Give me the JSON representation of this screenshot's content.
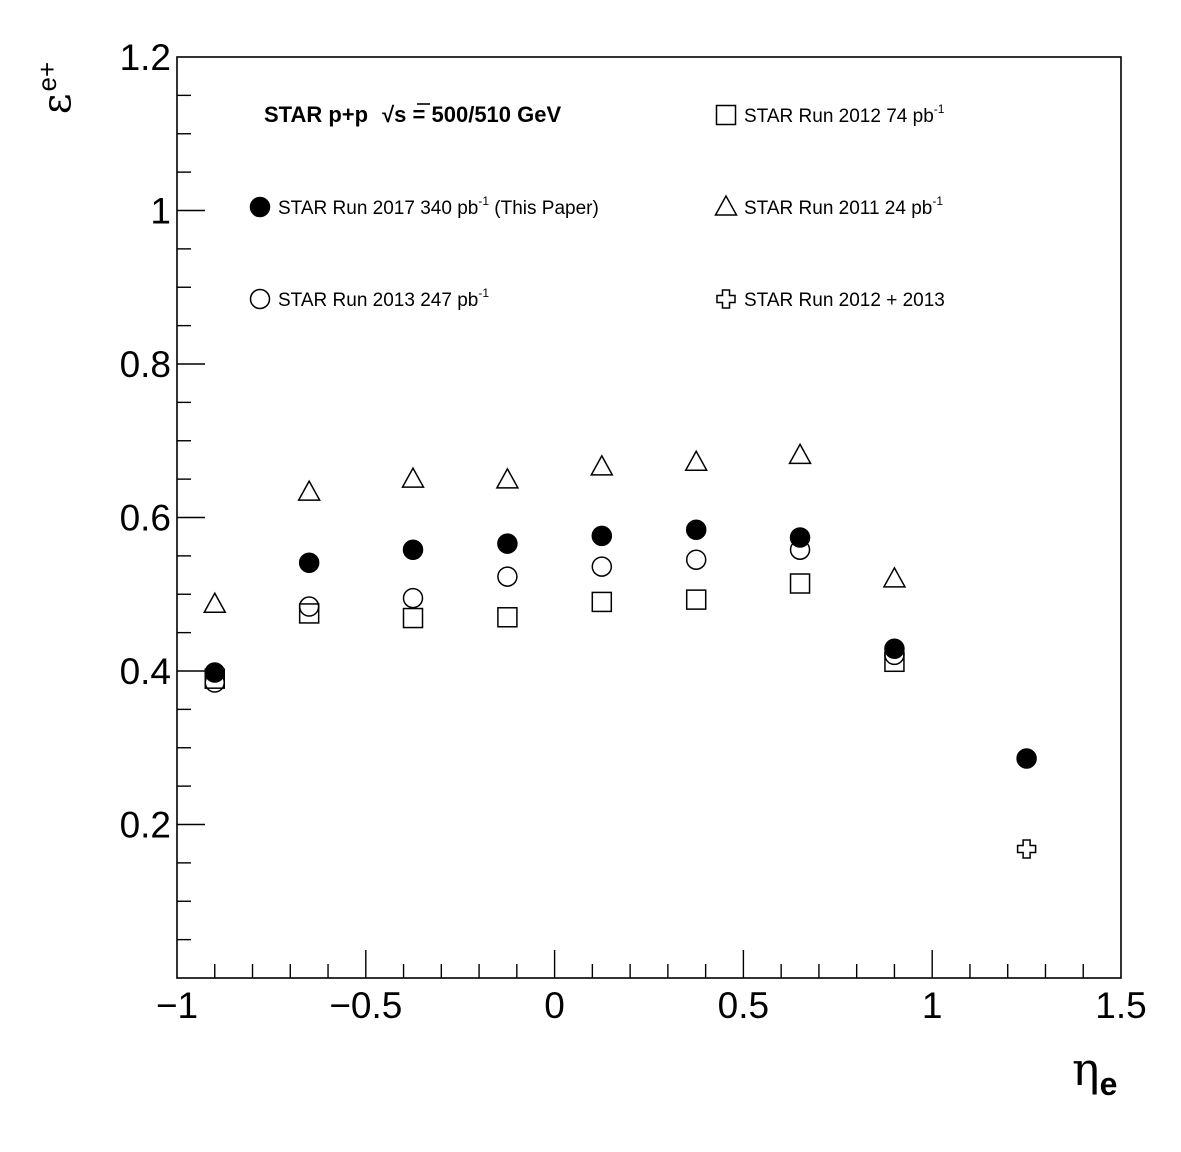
{
  "chart_data": {
    "type": "scatter",
    "title": "",
    "header": {
      "prefix": "STAR p+p",
      "sqrt_symbol": "√",
      "s_var": "s",
      "suffix": " = 500/510 GeV"
    },
    "xlabel": {
      "main": "η",
      "sub": "e"
    },
    "ylabel": {
      "main": "ε",
      "sup": "e+"
    },
    "xlim": [
      -1,
      1.5
    ],
    "ylim": [
      0,
      1.2
    ],
    "x_ticks": [
      {
        "value": -1,
        "label": "−1"
      },
      {
        "value": -0.5,
        "label": "−0.5"
      },
      {
        "value": 0,
        "label": "0"
      },
      {
        "value": 0.5,
        "label": "0.5"
      },
      {
        "value": 1,
        "label": "1"
      },
      {
        "value": 1.5,
        "label": "1.5"
      }
    ],
    "y_ticks": [
      {
        "value": 0.2,
        "label": "0.2"
      },
      {
        "value": 0.4,
        "label": "0.4"
      },
      {
        "value": 0.6,
        "label": "0.6"
      },
      {
        "value": 0.8,
        "label": "0.8"
      },
      {
        "value": 1,
        "label": "1"
      },
      {
        "value": 1.2,
        "label": "1.2"
      }
    ],
    "grid": false,
    "series": [
      {
        "key": "run2017",
        "name": "STAR Run 2017 340 pb",
        "name_sup": "-1",
        "name_suffix": " (This Paper)",
        "marker": "filled-circle",
        "points": [
          {
            "x": -0.9,
            "y": 0.398
          },
          {
            "x": -0.65,
            "y": 0.541
          },
          {
            "x": -0.375,
            "y": 0.558
          },
          {
            "x": -0.125,
            "y": 0.566
          },
          {
            "x": 0.125,
            "y": 0.576
          },
          {
            "x": 0.375,
            "y": 0.584
          },
          {
            "x": 0.65,
            "y": 0.574
          },
          {
            "x": 0.9,
            "y": 0.429
          },
          {
            "x": 1.25,
            "y": 0.286
          }
        ]
      },
      {
        "key": "run2013",
        "name": "STAR Run 2013 247 pb",
        "name_sup": "-1",
        "name_suffix": "",
        "marker": "open-circle",
        "points": [
          {
            "x": -0.9,
            "y": 0.385
          },
          {
            "x": -0.65,
            "y": 0.484
          },
          {
            "x": -0.375,
            "y": 0.495
          },
          {
            "x": -0.125,
            "y": 0.523
          },
          {
            "x": 0.125,
            "y": 0.536
          },
          {
            "x": 0.375,
            "y": 0.545
          },
          {
            "x": 0.65,
            "y": 0.558
          },
          {
            "x": 0.9,
            "y": 0.421
          }
        ]
      },
      {
        "key": "run2012",
        "name": "STAR Run 2012 74 pb",
        "name_sup": "-1",
        "name_suffix": "",
        "marker": "open-square",
        "points": [
          {
            "x": -0.9,
            "y": 0.39
          },
          {
            "x": -0.65,
            "y": 0.475
          },
          {
            "x": -0.375,
            "y": 0.469
          },
          {
            "x": -0.125,
            "y": 0.47
          },
          {
            "x": 0.125,
            "y": 0.49
          },
          {
            "x": 0.375,
            "y": 0.493
          },
          {
            "x": 0.65,
            "y": 0.514
          },
          {
            "x": 0.9,
            "y": 0.412
          }
        ]
      },
      {
        "key": "run2011",
        "name": "STAR Run 2011 24 pb",
        "name_sup": "-1",
        "name_suffix": "",
        "marker": "open-triangle",
        "points": [
          {
            "x": -0.9,
            "y": 0.487
          },
          {
            "x": -0.65,
            "y": 0.633
          },
          {
            "x": -0.375,
            "y": 0.65
          },
          {
            "x": -0.125,
            "y": 0.649
          },
          {
            "x": 0.125,
            "y": 0.666
          },
          {
            "x": 0.375,
            "y": 0.672
          },
          {
            "x": 0.65,
            "y": 0.681
          },
          {
            "x": 0.9,
            "y": 0.52
          }
        ]
      },
      {
        "key": "run2012_2013",
        "name": "STAR Run 2012 + 2013",
        "name_sup": "",
        "name_suffix": "",
        "marker": "open-cross",
        "points": [
          {
            "x": 1.25,
            "y": 0.168
          }
        ]
      }
    ],
    "legend_order": [
      "run2012",
      "run2017",
      "run2011",
      "run2013",
      "run2012_2013"
    ]
  }
}
